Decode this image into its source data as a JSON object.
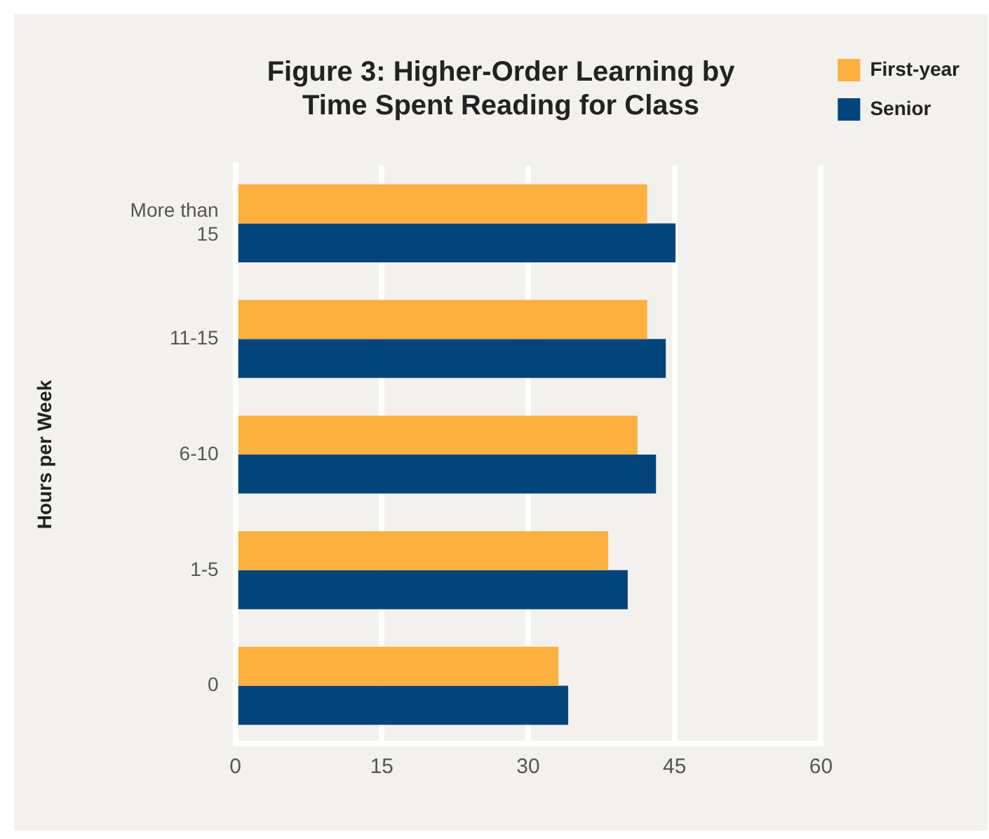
{
  "chart_data": {
    "type": "bar",
    "orientation": "horizontal",
    "title": "Figure 3: Higher-Order Learning by\nTime Spent Reading for Class",
    "ylabel": "Hours per Week",
    "categories": [
      "More than 15",
      "11-15",
      "6-10",
      "1-5",
      "0"
    ],
    "series": [
      {
        "name": "First-year",
        "color": "#fbb040",
        "values": [
          42.2,
          42.2,
          41.2,
          38.2,
          33.1
        ]
      },
      {
        "name": "Senior",
        "color": "#03457a",
        "values": [
          45.1,
          44.1,
          43.1,
          40.2,
          34.1
        ]
      }
    ],
    "xlim": [
      0,
      60
    ],
    "xticks": [
      0,
      15,
      30,
      45,
      60
    ],
    "grid": "x",
    "legend": "top right"
  }
}
